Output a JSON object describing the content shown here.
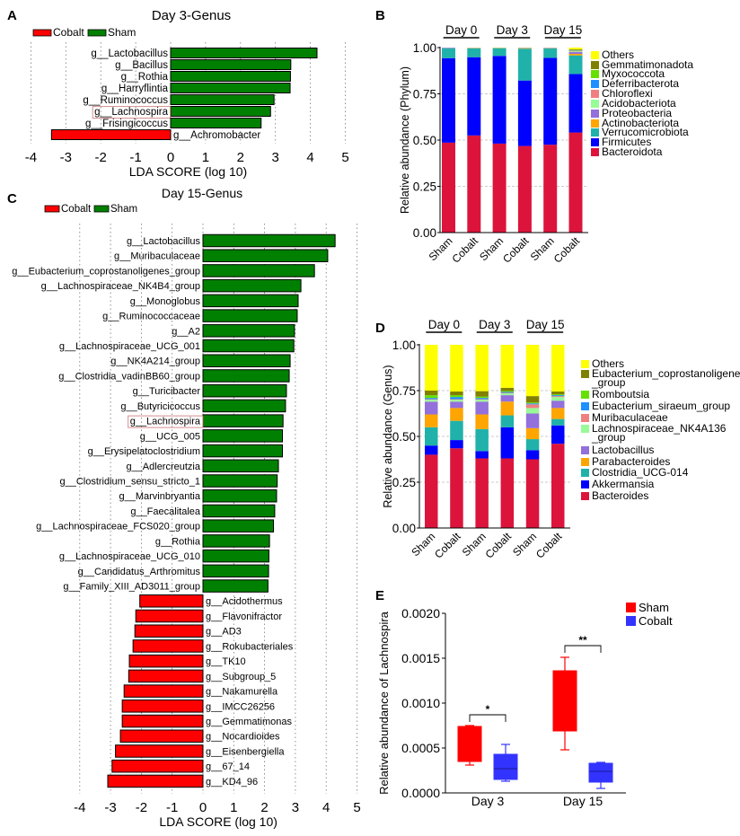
{
  "panel_labels": [
    "A",
    "B",
    "C",
    "D",
    "E"
  ],
  "chart_data": [
    {
      "panel": "A",
      "type": "bar",
      "orientation": "horizontal",
      "title": "Day 3-Genus",
      "xlabel": "LDA SCORE (log 10)",
      "xlim": [
        -4,
        5
      ],
      "xticks": [
        "-4",
        "-3",
        "-2",
        "-1",
        "0",
        "1",
        "2",
        "3",
        "4",
        "5"
      ],
      "grid": "vertical dotted",
      "legend": [
        {
          "name": "Cobalt",
          "color": "#ff0000"
        },
        {
          "name": "Sham",
          "color": "#008000"
        }
      ],
      "legend_position": "top-left",
      "highlighted": "g__Lachnospira",
      "categories": [
        "g__Lactobacillus",
        "g__Bacillus",
        "g__Rothia",
        "g__Harryflintia",
        "g__Ruminococcus",
        "g__Lachnospira",
        "g__Frisingicoccus",
        "g__Achromobacter"
      ],
      "values": [
        4.19,
        3.44,
        3.43,
        3.42,
        2.96,
        2.86,
        2.59,
        -3.41
      ]
    },
    {
      "panel": "B",
      "type": "bar",
      "stacked": true,
      "group_labels": [
        "Day 0",
        "Day 3",
        "Day 15"
      ],
      "categories": [
        "Sham",
        "Cobalt",
        "Sham",
        "Cobalt",
        "Sham",
        "Cobalt"
      ],
      "ylabel": "Relative abundance (Phylum)",
      "ylim": [
        0,
        1
      ],
      "yticks": [
        "0.00",
        "0.25",
        "0.50",
        "0.75",
        "1.00"
      ],
      "grid": "horizontal dashed",
      "legend_position": "right",
      "series": [
        {
          "name": "Bacteroidota",
          "color": "#dc143c",
          "values": [
            0.486,
            0.525,
            0.481,
            0.468,
            0.475,
            0.541
          ]
        },
        {
          "name": "Firmicutes",
          "color": "#0000ff",
          "values": [
            0.457,
            0.423,
            0.474,
            0.354,
            0.47,
            0.316
          ]
        },
        {
          "name": "Verrucomicrobiota",
          "color": "#20b2aa",
          "values": [
            0.052,
            0.048,
            0.042,
            0.172,
            0.05,
            0.101
          ]
        },
        {
          "name": "Actinobacteriota",
          "color": "#ffa500",
          "values": [
            0.001,
            0.001,
            0.001,
            0.001,
            0.001,
            0.008
          ]
        },
        {
          "name": "Proteobacteria",
          "color": "#9370db",
          "values": [
            0.003,
            0.002,
            0.001,
            0.003,
            0.003,
            0.01
          ]
        },
        {
          "name": "Acidobacteriota",
          "color": "#98fb98",
          "values": [
            0,
            0,
            0,
            0,
            0,
            0.003
          ]
        },
        {
          "name": "Chloroflexi",
          "color": "#f08080",
          "values": [
            0,
            0,
            0,
            0,
            0,
            0.003
          ]
        },
        {
          "name": "Deferribacterota",
          "color": "#1e90ff",
          "values": [
            0.001,
            0,
            0,
            0,
            0,
            0.002
          ]
        },
        {
          "name": "Myxococcota",
          "color": "#66e000",
          "values": [
            0,
            0,
            0,
            0,
            0,
            0.003
          ]
        },
        {
          "name": "Gemmatimonadota",
          "color": "#808000",
          "values": [
            0,
            0,
            0,
            0,
            0,
            0.004
          ]
        },
        {
          "name": "Others",
          "color": "#ffff00",
          "values": [
            0.0,
            0.001,
            0.001,
            0.002,
            0.001,
            0.009
          ]
        }
      ]
    },
    {
      "panel": "C",
      "type": "bar",
      "orientation": "horizontal",
      "title": "Day 15-Genus",
      "xlabel": "LDA SCORE (log 10)",
      "xlim": [
        -4,
        5
      ],
      "xticks": [
        "-4",
        "-3",
        "-2",
        "-1",
        "0",
        "1",
        "2",
        "3",
        "4",
        "5"
      ],
      "grid": "vertical dotted",
      "legend": [
        {
          "name": "Cobalt",
          "color": "#ff0000"
        },
        {
          "name": "Sham",
          "color": "#008000"
        }
      ],
      "legend_position": "top-left",
      "highlighted": "g__Lachnospira",
      "categories": [
        "g__Lactobacillus",
        "g__Muribaculaceae",
        "g__Eubacterium_coprostanoligenes_group",
        "g__Lachnospiraceae_NK4B4_group",
        "g__Monoglobus",
        "g__Ruminococcaceae",
        "g__A2",
        "g__Lachnospiraceae_UCG_001",
        "g__NK4A214_group",
        "g__Clostridia_vadinBB60_group",
        "g__Turicibacter",
        "g__Butyricicoccus",
        "g__Lachnospira",
        "g__UCG_005",
        "g__Erysipelatoclostridium",
        "g__Adlercreutzia",
        "g__Clostridium_sensu_stricto_1",
        "g__Marvinbryantia",
        "g__Faecalitalea",
        "g__Lachnospiraceae_FCS020_group",
        "g__Rothia",
        "g__Lachnospiraceae_UCG_010",
        "g__Candidatus_Arthromitus",
        "g__Family_XIII_AD3011_group",
        "g__Acidothermus",
        "g__Flavonifractor",
        "g__AD3",
        "g__Rokubacteriales",
        "g__TK10",
        "g__Subgroup_5",
        "g__Nakamurella",
        "g__IMCC26256",
        "g__Gemmatimonas",
        "g__Nocardioides",
        "g__Eisenbergiella",
        "g__67_14",
        "g__KD4_96"
      ],
      "values": [
        4.29,
        4.05,
        3.62,
        3.18,
        3.09,
        3.06,
        2.97,
        2.95,
        2.83,
        2.8,
        2.71,
        2.68,
        2.6,
        2.58,
        2.58,
        2.45,
        2.41,
        2.39,
        2.33,
        2.29,
        2.16,
        2.14,
        2.13,
        2.11,
        -2.05,
        -2.18,
        -2.21,
        -2.27,
        -2.39,
        -2.41,
        -2.56,
        -2.62,
        -2.62,
        -2.68,
        -2.84,
        -2.95,
        -3.09
      ]
    },
    {
      "panel": "D",
      "type": "bar",
      "stacked": true,
      "group_labels": [
        "Day 0",
        "Day 3",
        "Day 15"
      ],
      "categories": [
        "Sham",
        "Cobalt",
        "Sham",
        "Cobalt",
        "Sham",
        "Cobalt"
      ],
      "ylabel": "Relative abundance (Genus)",
      "ylim": [
        0,
        1
      ],
      "yticks": [
        "0.00",
        "0.25",
        "0.50",
        "0.75",
        "1.00"
      ],
      "grid": "horizontal dashed",
      "legend_position": "right",
      "series": [
        {
          "name": "Bacteroides",
          "color": "#dc143c",
          "values": [
            0.4,
            0.435,
            0.38,
            0.38,
            0.375,
            0.46
          ]
        },
        {
          "name": "Akkermansia",
          "color": "#0000ff",
          "values": [
            0.05,
            0.045,
            0.04,
            0.17,
            0.05,
            0.1
          ]
        },
        {
          "name": "Clostridia_UCG-014",
          "color": "#20b2aa",
          "values": [
            0.1,
            0.105,
            0.12,
            0.065,
            0.06,
            0.035
          ]
        },
        {
          "name": "Parabacteroides",
          "color": "#ffa500",
          "values": [
            0.07,
            0.07,
            0.08,
            0.075,
            0.06,
            0.06
          ]
        },
        {
          "name": "Lactobacillus",
          "color": "#9370db",
          "values": [
            0.07,
            0.035,
            0.07,
            0.035,
            0.08,
            0.04
          ]
        },
        {
          "name": "Lachnospiraceae_NK4A136_group",
          "color": "#98fb98",
          "values": [
            0.01,
            0.01,
            0.01,
            0.01,
            0.03,
            0.02
          ]
        },
        {
          "name": "Muribaculaceae",
          "color": "#f08080",
          "values": [
            0.003,
            0.003,
            0.003,
            0.003,
            0.02,
            0.005
          ]
        },
        {
          "name": "Eubacterium_siraeum_group",
          "color": "#1e90ff",
          "values": [
            0.007,
            0.012,
            0.007,
            0.005,
            0.005,
            0.005
          ]
        },
        {
          "name": "Romboutsia",
          "color": "#66e000",
          "values": [
            0.015,
            0.01,
            0.007,
            0.005,
            0.005,
            0.005
          ]
        },
        {
          "name": "Eubacterium_coprostanoligenes_group",
          "color": "#808000",
          "values": [
            0.025,
            0.02,
            0.03,
            0.017,
            0.035,
            0.015
          ]
        },
        {
          "name": "Others",
          "color": "#ffff00",
          "values": [
            0.25,
            0.255,
            0.253,
            0.235,
            0.28,
            0.255
          ]
        }
      ]
    },
    {
      "panel": "E",
      "type": "box",
      "ylabel": "Relative abundance of Lachnospira",
      "ylim": [
        0,
        0.002
      ],
      "yticks": [
        "0.0000",
        "0.0005",
        "0.0010",
        "0.0015",
        "0.0020"
      ],
      "categories": [
        "Day 3",
        "Day 15"
      ],
      "legend": [
        {
          "name": "Sham",
          "color": "#ff0000"
        },
        {
          "name": "Cobalt",
          "color": "#3333ff"
        }
      ],
      "legend_position": "top-right",
      "series": [
        {
          "name": "Sham",
          "color": "#ff0000",
          "boxes": [
            {
              "min": 0.00031,
              "q1": 0.00035,
              "median": 0.00036,
              "q3": 0.00074,
              "max": 0.00075
            },
            {
              "min": 0.00048,
              "q1": 0.00069,
              "median": 0.001,
              "q3": 0.00136,
              "max": 0.00151
            }
          ]
        },
        {
          "name": "Cobalt",
          "color": "#3333ff",
          "boxes": [
            {
              "min": 0.00013,
              "q1": 0.00015,
              "median": 0.00027,
              "q3": 0.00043,
              "max": 0.00054
            },
            {
              "min": 5e-05,
              "q1": 0.00012,
              "median": 0.00024,
              "q3": 0.00033,
              "max": 0.00034
            }
          ]
        }
      ],
      "significance": [
        "*",
        "**"
      ]
    }
  ]
}
